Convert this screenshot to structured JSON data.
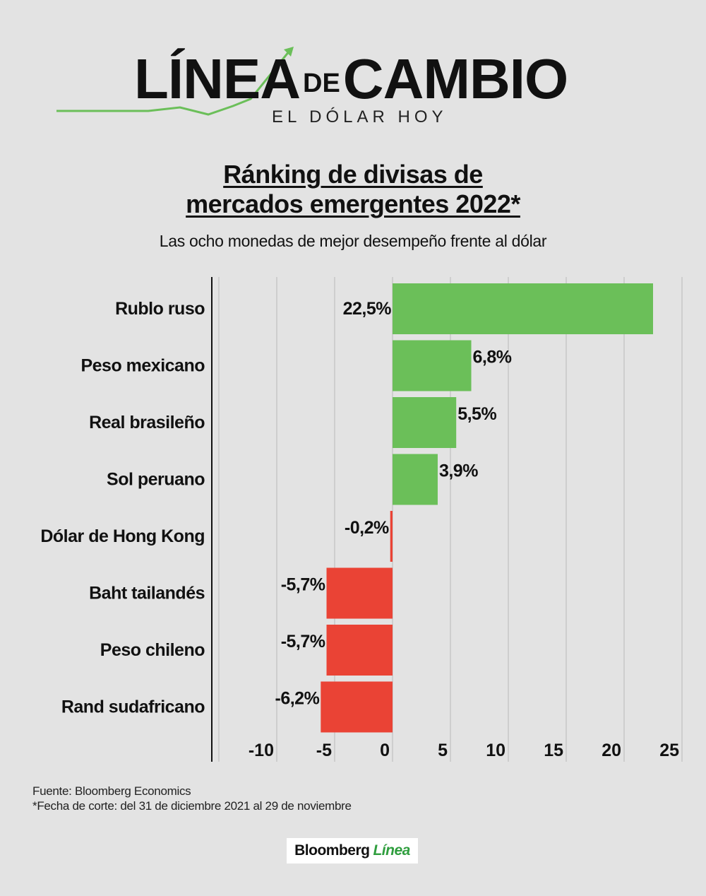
{
  "brand": {
    "line1": "LÍNEA",
    "de": "DE",
    "line2": "CAMBIO",
    "subtitle": "EL DÓLAR HOY"
  },
  "chart_data": {
    "type": "bar",
    "orientation": "horizontal",
    "title_line1": "Ránking de divisas de",
    "title_line2": "mercados emergentes 2022*",
    "subtitle": "Las ocho monedas de mejor desempeño frente al dólar",
    "categories": [
      "Rublo ruso",
      "Peso mexicano",
      "Real brasileño",
      "Sol peruano",
      "Dólar de Hong Kong",
      "Baht tailandés",
      "Peso chileno",
      "Rand sudafricano"
    ],
    "values": [
      22.5,
      6.8,
      5.5,
      3.9,
      -0.2,
      -5.7,
      -5.7,
      -6.2
    ],
    "value_labels": [
      "22,5%",
      "6,8%",
      "5,5%",
      "3,9%",
      "-0,2%",
      "-5,7%",
      "-5,7%",
      "-6,2%"
    ],
    "xlim": [
      -15,
      25
    ],
    "xticks": [
      -10,
      -5,
      0,
      5,
      10,
      15,
      20,
      25
    ],
    "xtick_labels": [
      "-10",
      "-5",
      "0",
      "5",
      "10",
      "15",
      "20",
      "25"
    ],
    "grid": true,
    "colors": {
      "positive": "#6bbf59",
      "negative": "#ea4335"
    }
  },
  "footer": {
    "source": "Fuente: Bloomberg Economics",
    "note": "*Fecha de corte: del 31 de diciembre 2021 al 29 de noviembre"
  },
  "logo": {
    "name": "Bloomberg",
    "accent": "Línea"
  }
}
